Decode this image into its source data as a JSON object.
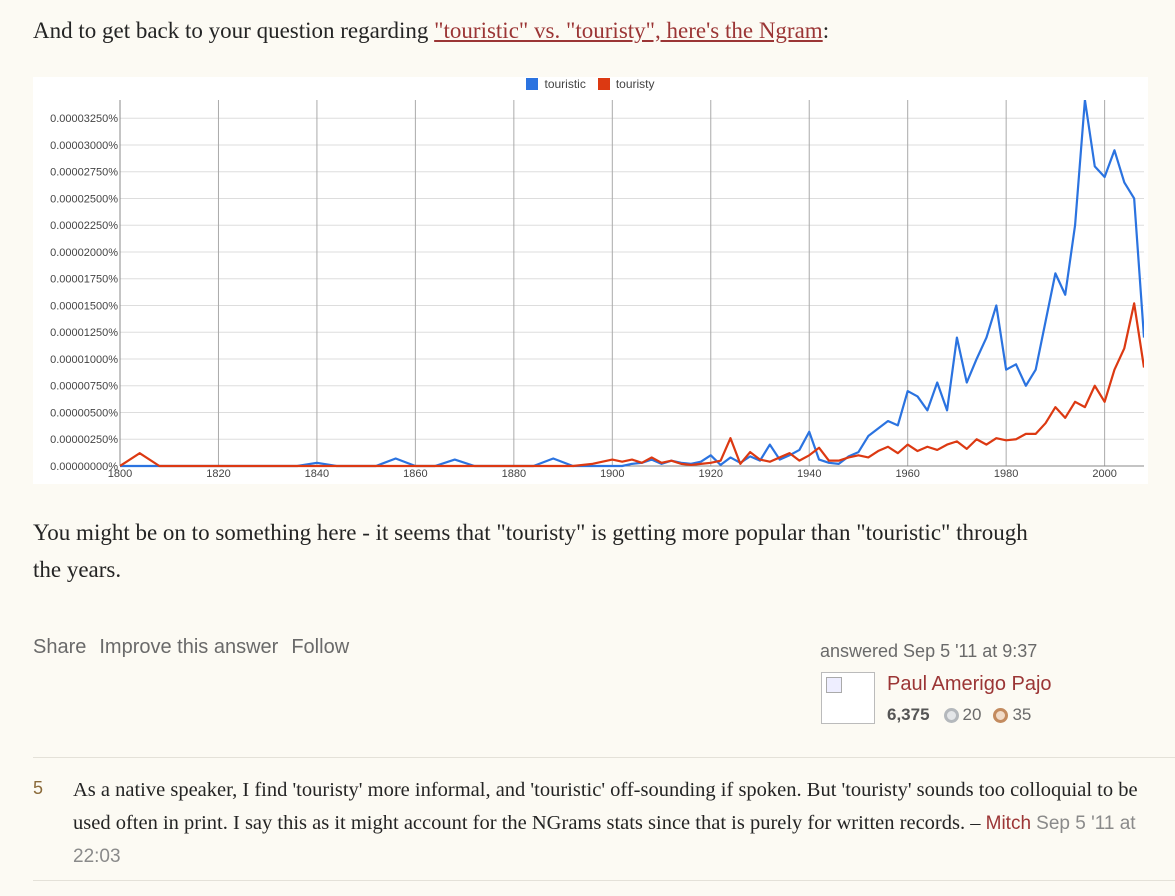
{
  "intro": {
    "text": "And to get back to your question regarding ",
    "link": "\"touristic\" vs. \"touristy\", here's the Ngram",
    "end": ":"
  },
  "chart_data": {
    "type": "line",
    "x": [
      1800,
      1804,
      1808,
      1812,
      1816,
      1820,
      1824,
      1828,
      1832,
      1836,
      1840,
      1844,
      1848,
      1852,
      1856,
      1860,
      1864,
      1868,
      1872,
      1876,
      1880,
      1884,
      1888,
      1892,
      1896,
      1900,
      1902,
      1904,
      1906,
      1908,
      1910,
      1912,
      1914,
      1916,
      1918,
      1920,
      1922,
      1924,
      1926,
      1928,
      1930,
      1932,
      1934,
      1936,
      1938,
      1940,
      1942,
      1944,
      1946,
      1948,
      1950,
      1952,
      1954,
      1956,
      1958,
      1960,
      1962,
      1964,
      1966,
      1968,
      1970,
      1972,
      1974,
      1976,
      1978,
      1980,
      1982,
      1984,
      1986,
      1988,
      1990,
      1992,
      1994,
      1996,
      1998,
      2000,
      2002,
      2004,
      2006,
      2008
    ],
    "series": [
      {
        "name": "touristic",
        "color": "#2b73e0",
        "values": [
          0,
          0,
          0,
          0,
          0,
          0,
          0,
          0,
          0,
          0,
          3e-07,
          0,
          0,
          0,
          7e-07,
          0,
          0,
          6e-07,
          0,
          0,
          0,
          0,
          7e-07,
          0,
          0,
          0,
          0,
          2e-07,
          3e-07,
          6e-07,
          2e-07,
          5e-07,
          3e-07,
          2e-07,
          4e-07,
          1e-06,
          1e-07,
          8e-07,
          3e-07,
          9e-07,
          5e-07,
          2e-06,
          6e-07,
          1e-06,
          1.5e-06,
          3.2e-06,
          6e-07,
          3e-07,
          2e-07,
          9e-07,
          1.3e-06,
          2.8e-06,
          3.5e-06,
          4.2e-06,
          3.8e-06,
          7e-06,
          6.5e-06,
          5.2e-06,
          7.8e-06,
          5.2e-06,
          1.2e-05,
          7.8e-06,
          1e-05,
          1.2e-05,
          1.5e-05,
          9e-06,
          9.5e-06,
          7.5e-06,
          9e-06,
          1.35e-05,
          1.8e-05,
          1.6e-05,
          2.25e-05,
          3.42e-05,
          2.8e-05,
          2.7e-05,
          2.95e-05,
          2.65e-05,
          2.5e-05,
          1.2e-05
        ]
      },
      {
        "name": "touristy",
        "color": "#dc3912",
        "values": [
          0,
          1.2e-06,
          0,
          0,
          0,
          0,
          0,
          0,
          0,
          0,
          0,
          0,
          0,
          0,
          0,
          0,
          0,
          0,
          0,
          0,
          0,
          0,
          0,
          0,
          2e-07,
          6e-07,
          4e-07,
          6e-07,
          3e-07,
          8e-07,
          3e-07,
          5e-07,
          2e-07,
          1e-07,
          2e-07,
          3e-07,
          5e-07,
          2.6e-06,
          2e-07,
          1.3e-06,
          6e-07,
          4e-07,
          8e-07,
          1.2e-06,
          5e-07,
          1e-06,
          1.7e-06,
          5e-07,
          5e-07,
          8e-07,
          1e-06,
          8e-07,
          1.4e-06,
          1.8e-06,
          1.2e-06,
          2e-06,
          1.4e-06,
          1.8e-06,
          1.5e-06,
          2e-06,
          2.3e-06,
          1.6e-06,
          2.5e-06,
          2e-06,
          2.6e-06,
          2.4e-06,
          2.5e-06,
          3e-06,
          3e-06,
          4e-06,
          5.5e-06,
          4.5e-06,
          6e-06,
          5.5e-06,
          7.5e-06,
          6e-06,
          9e-06,
          1.1e-05,
          1.52e-05,
          9.2e-06
        ]
      }
    ],
    "xlim": [
      1800,
      2008
    ],
    "ylim": [
      0,
      3.42e-05
    ],
    "xticks": [
      1800,
      1820,
      1840,
      1860,
      1880,
      1900,
      1920,
      1940,
      1960,
      1980,
      2000
    ],
    "yticks": [
      {
        "value": 0,
        "label": "0.00000000%"
      },
      {
        "value": 2.5e-06,
        "label": "0.00000250%"
      },
      {
        "value": 5e-06,
        "label": "0.00000500%"
      },
      {
        "value": 7.5e-06,
        "label": "0.00000750%"
      },
      {
        "value": 1e-05,
        "label": "0.00001000%"
      },
      {
        "value": 1.25e-05,
        "label": "0.00001250%"
      },
      {
        "value": 1.5e-05,
        "label": "0.00001500%"
      },
      {
        "value": 1.75e-05,
        "label": "0.00001750%"
      },
      {
        "value": 2e-05,
        "label": "0.00002000%"
      },
      {
        "value": 2.25e-05,
        "label": "0.00002250%"
      },
      {
        "value": 2.5e-05,
        "label": "0.00002500%"
      },
      {
        "value": 2.75e-05,
        "label": "0.00002750%"
      },
      {
        "value": 3e-05,
        "label": "0.00003000%"
      },
      {
        "value": 3.25e-05,
        "label": "0.00003250%"
      }
    ],
    "grid": true,
    "legend": "top"
  },
  "answer_text": "You might be on to something here - it seems that \"touristy\" is getting more popular than \"touristic\" through the years.",
  "actions": [
    "Share",
    "Improve this answer",
    "Follow"
  ],
  "answered": "answered Sep 5 '11 at 9:37",
  "user": {
    "name": "Paul Amerigo Pajo",
    "reputation": "6,375",
    "silver": 20,
    "bronze": 35
  },
  "comment": {
    "score": 5,
    "text": "As a native speaker, I find 'touristy' more informal, and 'touristic' off-sounding if spoken. But 'touristy' sounds too colloquial to be used often in print. I say this as it might account for the NGrams stats since that is purely for written records. –",
    "author": "Mitch",
    "date": "Sep 5 '11 at 22:03"
  }
}
